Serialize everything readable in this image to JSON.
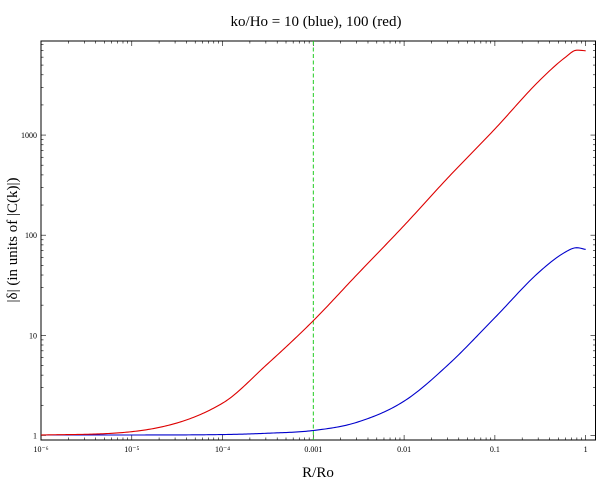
{
  "chart_data": {
    "type": "line",
    "title": "ko/Ho = 10 (blue), 100 (red)",
    "xlabel": "R/Ro",
    "ylabel": "|δ| (in units of |C(k)|)",
    "xscale": "log",
    "yscale": "log",
    "xlim": [
      1e-06,
      1.3
    ],
    "ylim": [
      0.9,
      8700
    ],
    "x_tick_labels": [
      "10⁻⁶",
      "10⁻⁵",
      "10⁻⁴",
      "0.001",
      "0.01",
      "0.1",
      "1"
    ],
    "y_tick_labels": [
      "1",
      "10",
      "100",
      "1000"
    ],
    "reference_line": {
      "axis": "x",
      "value": 0.001,
      "color": "#22cc22",
      "style": "dashed"
    },
    "series": [
      {
        "color": "#0000cc",
        "x": [
          1e-06,
          1e-05,
          0.0001,
          0.0003,
          0.001,
          0.003,
          0.01,
          0.03,
          0.1,
          0.3,
          0.6,
          0.8,
          1.0
        ],
        "y": [
          1.01,
          1.01,
          1.02,
          1.05,
          1.12,
          1.35,
          2.2,
          5.0,
          15,
          42,
          68,
          75,
          72
        ]
      },
      {
        "color": "#dd0000",
        "x": [
          1e-06,
          1e-05,
          0.0001,
          0.0003,
          0.001,
          0.003,
          0.01,
          0.03,
          0.1,
          0.3,
          0.6,
          0.8,
          1.0
        ],
        "y": [
          1.01,
          1.09,
          2.1,
          5.0,
          14,
          40,
          125,
          370,
          1150,
          3400,
          6000,
          7050,
          6950
        ]
      }
    ]
  }
}
